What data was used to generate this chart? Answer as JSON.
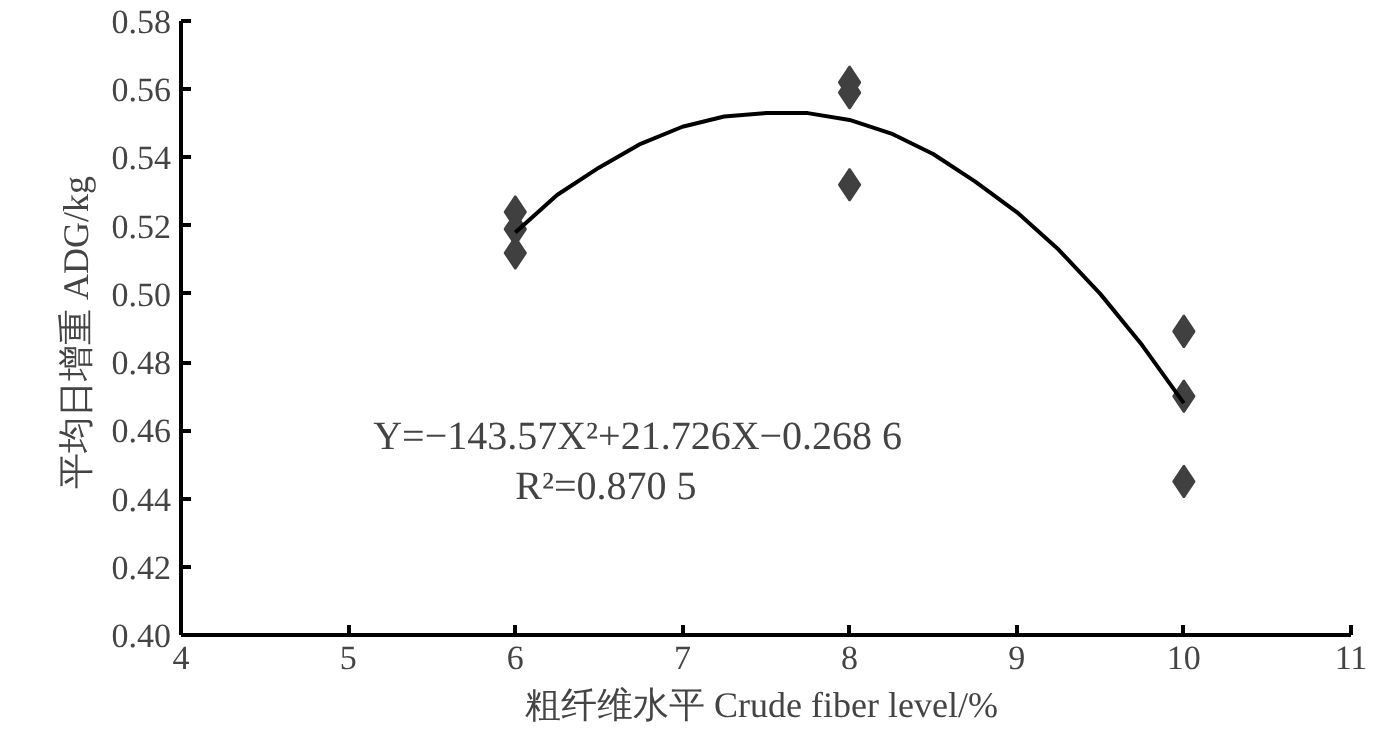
{
  "chart_data": {
    "type": "scatter",
    "xlabel": "粗纤维水平  Crude fiber level/%",
    "ylabel": "平均日增重  ADG/kg",
    "xlim": [
      4,
      11
    ],
    "xticks": [
      4,
      5,
      6,
      7,
      8,
      9,
      10,
      11
    ],
    "ylim": [
      0.4,
      0.58
    ],
    "yticks": [
      {
        "value": 0.4,
        "label": "0.40"
      },
      {
        "value": 0.42,
        "label": "0.42"
      },
      {
        "value": 0.44,
        "label": "0.44"
      },
      {
        "value": 0.46,
        "label": "0.46"
      },
      {
        "value": 0.48,
        "label": "0.48"
      },
      {
        "value": 0.5,
        "label": "0.50"
      },
      {
        "value": 0.52,
        "label": "0.52"
      },
      {
        "value": 0.54,
        "label": "0.54"
      },
      {
        "value": 0.56,
        "label": "0.56"
      },
      {
        "value": 0.58,
        "label": "0.58"
      }
    ],
    "grid": false,
    "marker": "diamond",
    "series": [
      {
        "color": "#404040",
        "x": [
          6,
          6,
          6,
          8,
          8,
          8,
          10,
          10,
          10
        ],
        "values": [
          0.524,
          0.519,
          0.512,
          0.562,
          0.559,
          0.532,
          0.489,
          0.47,
          0.445
        ]
      },
      {
        "type": "line",
        "marker": "none",
        "color": "#000000",
        "x": [
          6,
          6.25,
          6.5,
          6.75,
          7,
          7.25,
          7.5,
          7.75,
          8,
          8.25,
          8.5,
          8.75,
          9,
          9.25,
          9.5,
          9.75,
          10
        ],
        "values": [
          0.518,
          0.529,
          0.537,
          0.544,
          0.549,
          0.552,
          0.553,
          0.553,
          0.551,
          0.547,
          0.541,
          0.533,
          0.524,
          0.513,
          0.5,
          0.485,
          0.468
        ]
      }
    ],
    "annotations": [
      "Y=−143.57X²+21.726X−0.268 6",
      "R²=0.870 5"
    ]
  }
}
